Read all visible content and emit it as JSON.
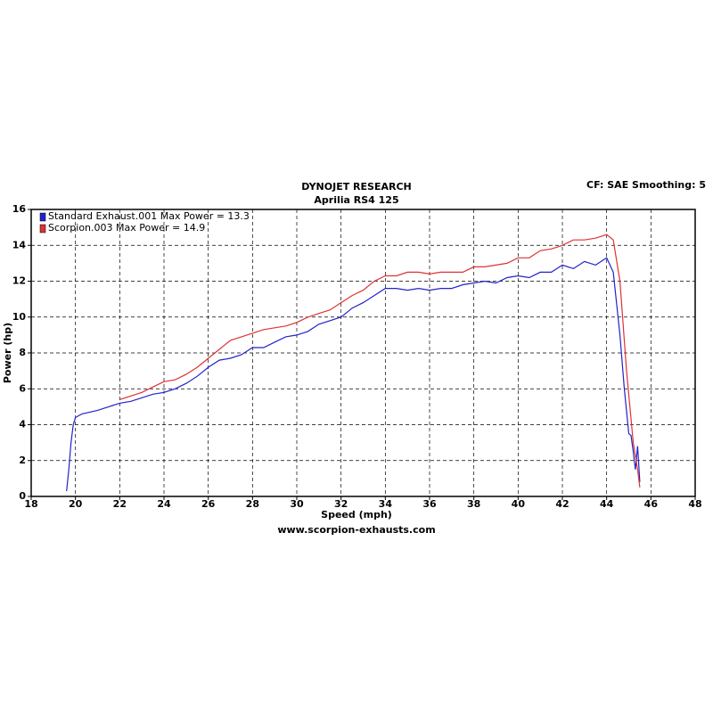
{
  "chart_data": {
    "type": "line",
    "title": "DYNOJET RESEARCH",
    "subtitle": "Aprilia RS4 125",
    "annotation": "CF: SAE  Smoothing: 5",
    "x_label": "Speed (mph)",
    "y_label": "Power (hp)",
    "footer": "www.scorpion-exhausts.com",
    "xlim": [
      18,
      48
    ],
    "ylim": [
      0,
      16
    ],
    "xticks": [
      18,
      20,
      22,
      24,
      26,
      28,
      30,
      32,
      34,
      36,
      38,
      40,
      42,
      44,
      46,
      48
    ],
    "yticks": [
      0,
      2,
      4,
      6,
      8,
      10,
      12,
      14,
      16
    ],
    "grid": true,
    "legend": "top-left",
    "series": [
      {
        "name": "Standard Exhaust.001 Max Power = 13.3",
        "color": "#2222cc",
        "x": [
          19.6,
          19.7,
          19.8,
          19.9,
          20.0,
          20.3,
          21,
          21.5,
          22,
          22.5,
          23,
          23.5,
          24,
          24.5,
          25,
          25.5,
          26,
          26.5,
          27,
          27.5,
          28,
          28.5,
          29,
          29.5,
          30,
          30.5,
          31,
          31.5,
          32,
          32.5,
          33,
          33.5,
          34,
          34.5,
          35,
          35.5,
          36,
          36.5,
          37,
          37.5,
          38,
          38.5,
          39,
          39.5,
          40,
          40.5,
          41,
          41.5,
          42,
          42.5,
          43,
          43.5,
          44,
          44.3,
          44.6,
          44.8,
          45,
          45.1,
          45.2,
          45.3,
          45.4,
          45.5
        ],
        "values": [
          0.3,
          1.5,
          3.0,
          4.0,
          4.4,
          4.6,
          4.8,
          5.0,
          5.2,
          5.3,
          5.5,
          5.7,
          5.8,
          6.0,
          6.3,
          6.7,
          7.2,
          7.6,
          7.7,
          7.9,
          8.3,
          8.3,
          8.6,
          8.9,
          9.0,
          9.2,
          9.6,
          9.8,
          10.0,
          10.5,
          10.8,
          11.2,
          11.6,
          11.6,
          11.5,
          11.6,
          11.5,
          11.6,
          11.6,
          11.8,
          11.9,
          12.0,
          11.9,
          12.2,
          12.3,
          12.2,
          12.5,
          12.5,
          12.9,
          12.7,
          13.1,
          12.9,
          13.3,
          12.5,
          9,
          6,
          3.5,
          3.4,
          2.5,
          1.5,
          2.8,
          0.8
        ]
      },
      {
        "name": "Scorpion.003 Max Power = 14.9",
        "color": "#dd3333",
        "x": [
          22,
          22.5,
          23,
          23.5,
          24,
          24.5,
          25,
          25.5,
          26,
          26.5,
          27,
          27.5,
          28,
          28.5,
          29,
          29.5,
          30,
          30.5,
          31,
          31.5,
          32,
          32.5,
          33,
          33.5,
          34,
          34.5,
          35,
          35.5,
          36,
          36.5,
          37,
          37.5,
          38,
          38.5,
          39,
          39.5,
          40,
          40.5,
          41,
          41.5,
          42,
          42.5,
          43,
          43.5,
          44,
          44.3,
          44.6,
          44.9,
          45.2,
          45.4,
          45.5
        ],
        "values": [
          5.4,
          5.6,
          5.8,
          6.1,
          6.4,
          6.5,
          6.8,
          7.2,
          7.7,
          8.2,
          8.7,
          8.9,
          9.1,
          9.3,
          9.4,
          9.5,
          9.7,
          10.0,
          10.2,
          10.4,
          10.8,
          11.2,
          11.5,
          12.0,
          12.3,
          12.3,
          12.5,
          12.5,
          12.4,
          12.5,
          12.5,
          12.5,
          12.8,
          12.8,
          12.9,
          13.0,
          13.3,
          13.3,
          13.7,
          13.8,
          14.0,
          14.3,
          14.3,
          14.4,
          14.6,
          14.3,
          12,
          7,
          3,
          1.5,
          0.5
        ]
      }
    ]
  }
}
